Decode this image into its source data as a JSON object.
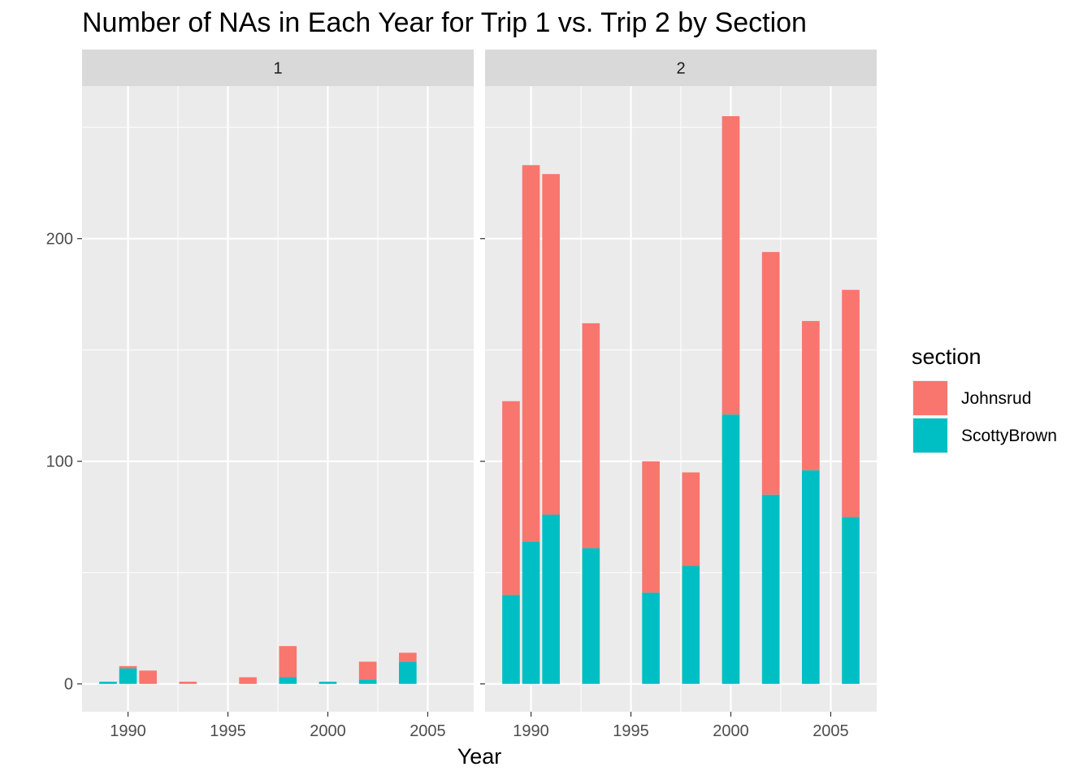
{
  "chart_data": {
    "type": "bar",
    "stacked": true,
    "title": "Number of NAs in Each Year for Trip 1 vs. Trip 2 by Section",
    "xlabel": "Year",
    "ylabel": "",
    "xlim": [
      1987.7,
      2007.3
    ],
    "ylim": [
      -12.5,
      268.5
    ],
    "x_ticks": [
      1990,
      1995,
      2000,
      2005
    ],
    "y_ticks": [
      0,
      100,
      200
    ],
    "y_minor_ticks": [
      50,
      150,
      250
    ],
    "grid": true,
    "legend": {
      "title": "section",
      "position": "right",
      "entries": [
        {
          "name": "Johnsrud",
          "color": "#F8766D"
        },
        {
          "name": "ScottyBrown",
          "color": "#00BFC4"
        }
      ]
    },
    "panels": [
      {
        "label": "1",
        "x": [
          1989,
          1990,
          1991,
          1993,
          1996,
          1998,
          2000,
          2002,
          2004
        ],
        "series": [
          {
            "name": "Johnsrud",
            "values": [
              0,
              1,
              6,
              1,
              3,
              14,
              0,
              8,
              4
            ]
          },
          {
            "name": "ScottyBrown",
            "values": [
              1,
              7,
              0,
              0,
              0,
              3,
              1,
              2,
              10
            ]
          }
        ]
      },
      {
        "label": "2",
        "x": [
          1989,
          1990,
          1991,
          1993,
          1996,
          1998,
          2000,
          2002,
          2004,
          2006
        ],
        "series": [
          {
            "name": "Johnsrud",
            "values": [
              87,
              169,
              153,
              101,
              59,
              42,
              134,
              109,
              67,
              102
            ]
          },
          {
            "name": "ScottyBrown",
            "values": [
              40,
              64,
              76,
              61,
              41,
              53,
              121,
              85,
              96,
              75
            ]
          }
        ]
      }
    ]
  }
}
